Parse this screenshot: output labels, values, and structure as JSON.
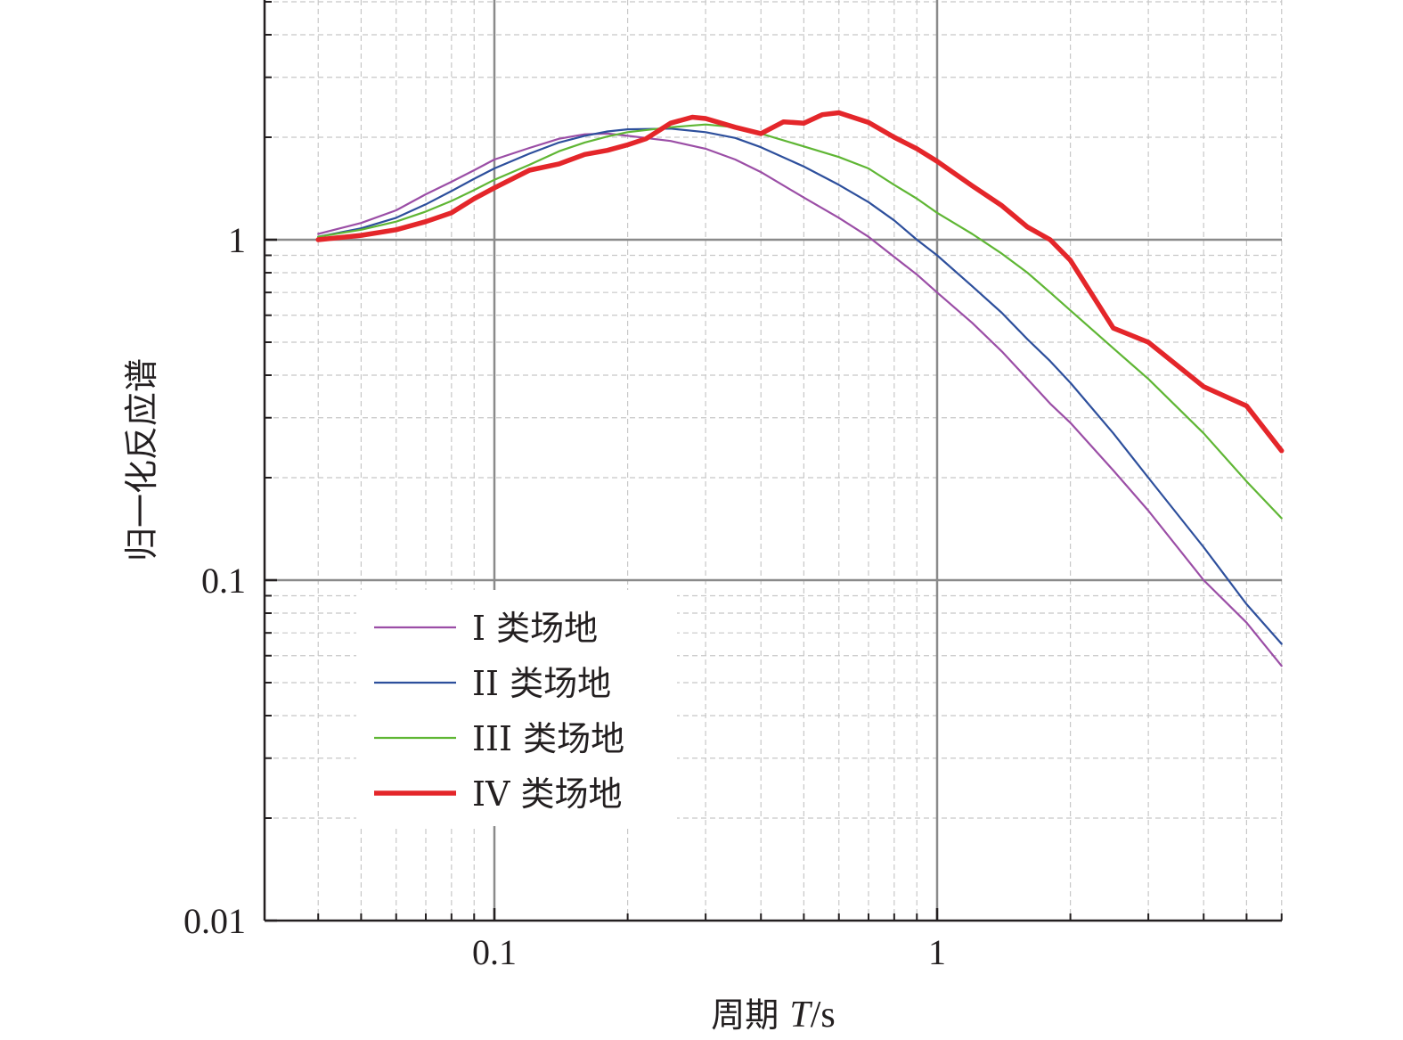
{
  "chart_data": {
    "type": "line",
    "title": "",
    "xlabel_prefix": "周期 ",
    "xlabel_var": "T",
    "xlabel_unit": "/s",
    "ylabel": "归一化反应谱",
    "x_scale": "log",
    "y_scale": "log",
    "xlim": [
      0.04,
      6
    ],
    "ylim": [
      0.01,
      10
    ],
    "x_ticks": [
      {
        "value": 0.1,
        "label": "0.1"
      },
      {
        "value": 1,
        "label": "1"
      }
    ],
    "y_ticks": [
      {
        "value": 0.01,
        "label": "0.01"
      },
      {
        "value": 0.1,
        "label": "0.1"
      },
      {
        "value": 1,
        "label": "1"
      }
    ],
    "grid": true,
    "legend_position": "bottom-left",
    "series": [
      {
        "name": "I 类场地",
        "color": "#9b4ea6",
        "line_width": 2.2,
        "points": [
          [
            0.04,
            1.04
          ],
          [
            0.05,
            1.12
          ],
          [
            0.06,
            1.22
          ],
          [
            0.07,
            1.36
          ],
          [
            0.08,
            1.48
          ],
          [
            0.09,
            1.6
          ],
          [
            0.1,
            1.72
          ],
          [
            0.12,
            1.86
          ],
          [
            0.14,
            1.98
          ],
          [
            0.16,
            2.04
          ],
          [
            0.18,
            2.05
          ],
          [
            0.2,
            2.02
          ],
          [
            0.25,
            1.95
          ],
          [
            0.3,
            1.85
          ],
          [
            0.35,
            1.72
          ],
          [
            0.4,
            1.58
          ],
          [
            0.5,
            1.33
          ],
          [
            0.6,
            1.16
          ],
          [
            0.7,
            1.02
          ],
          [
            0.8,
            0.89
          ],
          [
            0.9,
            0.79
          ],
          [
            1.0,
            0.7
          ],
          [
            1.2,
            0.57
          ],
          [
            1.4,
            0.47
          ],
          [
            1.6,
            0.39
          ],
          [
            1.8,
            0.33
          ],
          [
            2.0,
            0.29
          ],
          [
            2.5,
            0.21
          ],
          [
            3.0,
            0.16
          ],
          [
            4.0,
            0.1
          ],
          [
            5.0,
            0.075
          ],
          [
            6.0,
            0.056
          ]
        ]
      },
      {
        "name": "II 类场地",
        "color": "#2d4f9c",
        "line_width": 2.2,
        "points": [
          [
            0.04,
            1.02
          ],
          [
            0.05,
            1.08
          ],
          [
            0.06,
            1.16
          ],
          [
            0.07,
            1.27
          ],
          [
            0.08,
            1.39
          ],
          [
            0.09,
            1.51
          ],
          [
            0.1,
            1.62
          ],
          [
            0.12,
            1.79
          ],
          [
            0.14,
            1.93
          ],
          [
            0.16,
            2.02
          ],
          [
            0.18,
            2.08
          ],
          [
            0.2,
            2.11
          ],
          [
            0.25,
            2.12
          ],
          [
            0.3,
            2.07
          ],
          [
            0.35,
            1.99
          ],
          [
            0.4,
            1.87
          ],
          [
            0.5,
            1.64
          ],
          [
            0.6,
            1.45
          ],
          [
            0.7,
            1.29
          ],
          [
            0.8,
            1.14
          ],
          [
            0.9,
            1.0
          ],
          [
            1.0,
            0.9
          ],
          [
            1.2,
            0.73
          ],
          [
            1.4,
            0.61
          ],
          [
            1.6,
            0.51
          ],
          [
            1.8,
            0.44
          ],
          [
            2.0,
            0.38
          ],
          [
            2.5,
            0.27
          ],
          [
            3.0,
            0.2
          ],
          [
            4.0,
            0.125
          ],
          [
            5.0,
            0.085
          ],
          [
            6.0,
            0.065
          ]
        ]
      },
      {
        "name": "III 类场地",
        "color": "#5fb634",
        "line_width": 2.2,
        "points": [
          [
            0.04,
            1.02
          ],
          [
            0.05,
            1.07
          ],
          [
            0.06,
            1.13
          ],
          [
            0.07,
            1.21
          ],
          [
            0.08,
            1.3
          ],
          [
            0.09,
            1.4
          ],
          [
            0.1,
            1.5
          ],
          [
            0.12,
            1.66
          ],
          [
            0.14,
            1.82
          ],
          [
            0.16,
            1.93
          ],
          [
            0.18,
            2.01
          ],
          [
            0.2,
            2.07
          ],
          [
            0.25,
            2.14
          ],
          [
            0.3,
            2.18
          ],
          [
            0.35,
            2.14
          ],
          [
            0.4,
            2.05
          ],
          [
            0.5,
            1.88
          ],
          [
            0.6,
            1.75
          ],
          [
            0.7,
            1.62
          ],
          [
            0.8,
            1.45
          ],
          [
            0.9,
            1.32
          ],
          [
            1.0,
            1.2
          ],
          [
            1.2,
            1.04
          ],
          [
            1.4,
            0.91
          ],
          [
            1.6,
            0.8
          ],
          [
            1.8,
            0.7
          ],
          [
            2.0,
            0.62
          ],
          [
            2.5,
            0.48
          ],
          [
            3.0,
            0.39
          ],
          [
            4.0,
            0.27
          ],
          [
            5.0,
            0.195
          ],
          [
            6.0,
            0.152
          ]
        ]
      },
      {
        "name": "IV 类场地",
        "color": "#e4262a",
        "line_width": 5.5,
        "points": [
          [
            0.04,
            1.0
          ],
          [
            0.05,
            1.03
          ],
          [
            0.06,
            1.07
          ],
          [
            0.07,
            1.13
          ],
          [
            0.08,
            1.2
          ],
          [
            0.09,
            1.32
          ],
          [
            0.1,
            1.42
          ],
          [
            0.12,
            1.6
          ],
          [
            0.14,
            1.67
          ],
          [
            0.16,
            1.78
          ],
          [
            0.18,
            1.83
          ],
          [
            0.2,
            1.9
          ],
          [
            0.22,
            1.98
          ],
          [
            0.25,
            2.2
          ],
          [
            0.28,
            2.29
          ],
          [
            0.3,
            2.27
          ],
          [
            0.35,
            2.14
          ],
          [
            0.4,
            2.05
          ],
          [
            0.45,
            2.22
          ],
          [
            0.5,
            2.2
          ],
          [
            0.55,
            2.33
          ],
          [
            0.6,
            2.36
          ],
          [
            0.7,
            2.21
          ],
          [
            0.8,
            2.0
          ],
          [
            0.9,
            1.85
          ],
          [
            1.0,
            1.7
          ],
          [
            1.2,
            1.44
          ],
          [
            1.4,
            1.26
          ],
          [
            1.6,
            1.09
          ],
          [
            1.8,
            1.0
          ],
          [
            2.0,
            0.87
          ],
          [
            2.5,
            0.55
          ],
          [
            3.0,
            0.5
          ],
          [
            4.0,
            0.37
          ],
          [
            5.0,
            0.325
          ],
          [
            6.0,
            0.24
          ]
        ]
      }
    ]
  }
}
